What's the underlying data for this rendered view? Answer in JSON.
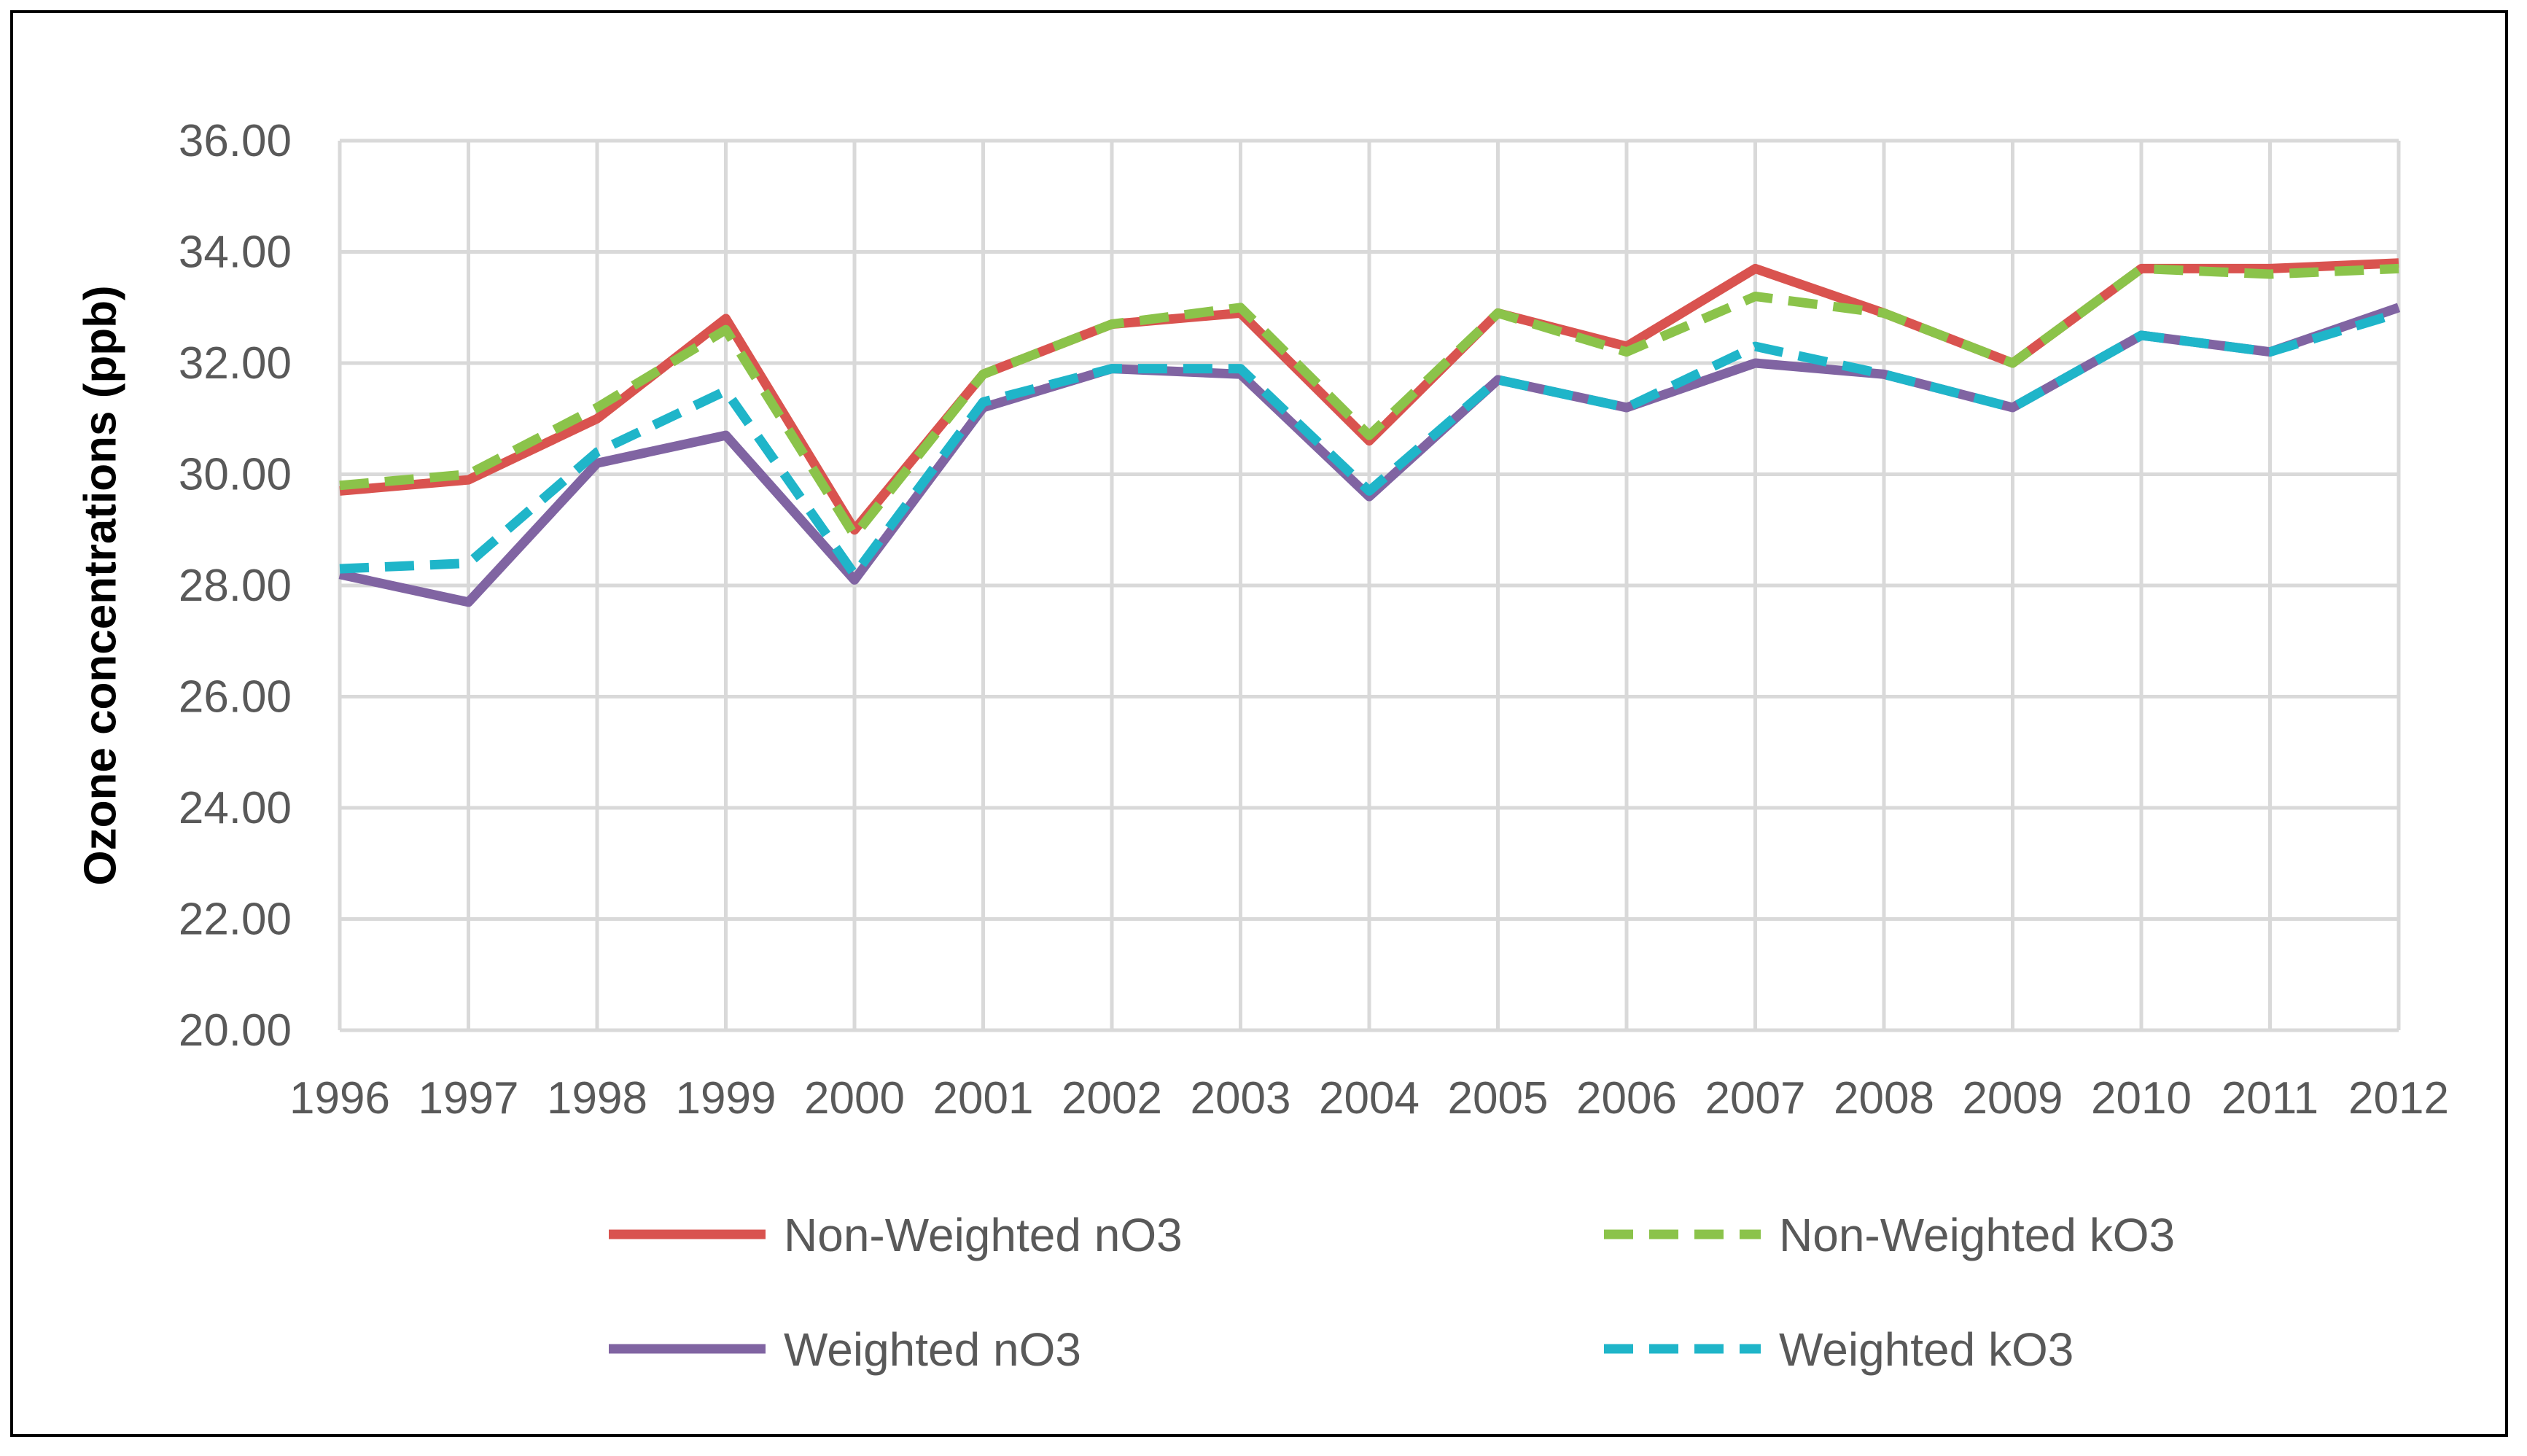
{
  "chart_data": {
    "type": "line",
    "title": "",
    "xlabel": "",
    "ylabel": "Ozone concentrations (ppb)",
    "ylim": [
      20,
      36
    ],
    "ytick_step": 2,
    "grid": true,
    "legend_position": "bottom",
    "categories": [
      "1996",
      "1997",
      "1998",
      "1999",
      "2000",
      "2001",
      "2002",
      "2003",
      "2004",
      "2005",
      "2006",
      "2007",
      "2008",
      "2009",
      "2010",
      "2011",
      "2012"
    ],
    "ytick_labels": [
      "20.00",
      "22.00",
      "24.00",
      "26.00",
      "28.00",
      "30.00",
      "32.00",
      "34.00",
      "36.00"
    ],
    "series": [
      {
        "name": "Non-Weighted nO3",
        "color": "#d9534f",
        "dash": "solid",
        "values": [
          29.7,
          29.9,
          31.0,
          32.8,
          29.0,
          31.8,
          32.7,
          32.9,
          30.6,
          32.9,
          32.3,
          33.7,
          32.9,
          32.0,
          33.7,
          33.7,
          33.8
        ]
      },
      {
        "name": "Non-Weighted kO3",
        "color": "#8bc34a",
        "dash": "dashed",
        "values": [
          29.8,
          30.0,
          31.2,
          32.6,
          28.9,
          31.8,
          32.7,
          33.0,
          30.7,
          32.9,
          32.2,
          33.2,
          32.9,
          32.0,
          33.7,
          33.6,
          33.7
        ]
      },
      {
        "name": "Weighted nO3",
        "color": "#8064a2",
        "dash": "solid",
        "values": [
          28.2,
          27.7,
          30.2,
          30.7,
          28.1,
          31.2,
          31.9,
          31.8,
          29.6,
          31.7,
          31.2,
          32.0,
          31.8,
          31.2,
          32.5,
          32.2,
          33.0
        ]
      },
      {
        "name": "Weighted kO3",
        "color": "#1fb5c9",
        "dash": "dashed",
        "values": [
          28.3,
          28.4,
          30.4,
          31.5,
          28.2,
          31.3,
          31.9,
          31.9,
          29.7,
          31.7,
          31.2,
          32.3,
          31.8,
          31.2,
          32.5,
          32.2,
          32.9
        ]
      }
    ]
  }
}
